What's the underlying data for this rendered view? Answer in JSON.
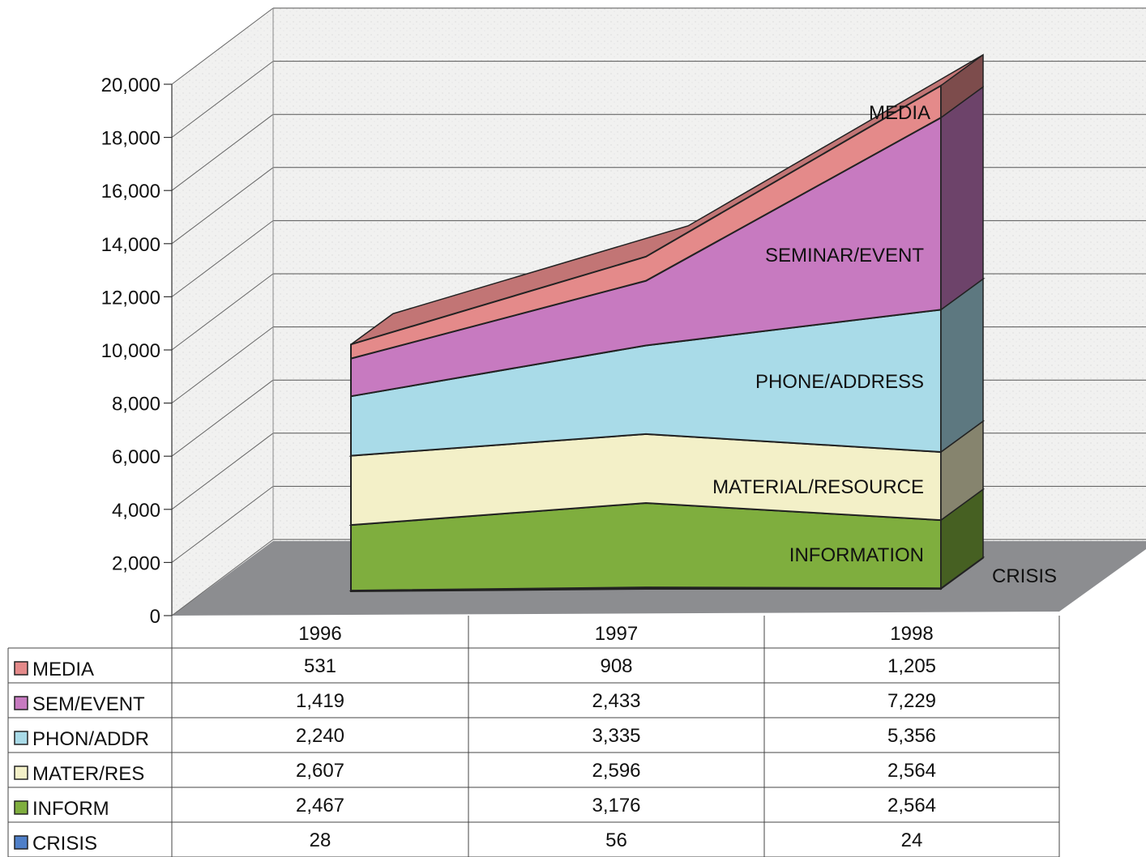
{
  "chart_data": {
    "type": "area",
    "subtype": "stacked-3d",
    "categories": [
      "1996",
      "1997",
      "1998"
    ],
    "ylim": [
      0,
      20000
    ],
    "y_ticks": [
      "0",
      "2,000",
      "4,000",
      "6,000",
      "8,000",
      "10,000",
      "12,000",
      "14,000",
      "16,000",
      "18,000",
      "20,000"
    ],
    "grid": true,
    "series": [
      {
        "name": "CRISIS",
        "table_label": "CRISIS",
        "values": [
          28,
          56,
          24
        ],
        "value_labels": [
          "28",
          "56",
          "24"
        ],
        "color": "#4f7fc8"
      },
      {
        "name": "INFORMATION",
        "table_label": "INFORM",
        "values": [
          2467,
          3176,
          2564
        ],
        "value_labels": [
          "2,467",
          "3,176",
          "2,564"
        ],
        "color": "#7fae3e"
      },
      {
        "name": "MATERIAL/RESOURCE",
        "table_label": "MATER/RES",
        "values": [
          2607,
          2596,
          2564
        ],
        "value_labels": [
          "2,607",
          "2,596",
          "2,564"
        ],
        "color": "#f3f0c8"
      },
      {
        "name": "PHONE/ADDRESS",
        "table_label": "PHON/ADDR",
        "values": [
          2240,
          3335,
          5356
        ],
        "value_labels": [
          "2,240",
          "3,335",
          "5,356"
        ],
        "color": "#a9dbe8"
      },
      {
        "name": "SEMINAR/EVENT",
        "table_label": "SEM/EVENT",
        "values": [
          1419,
          2433,
          7229
        ],
        "value_labels": [
          "1,419",
          "2,433",
          "7,229"
        ],
        "color": "#c77ac0"
      },
      {
        "name": "MEDIA",
        "table_label": "MEDIA",
        "values": [
          531,
          908,
          1205
        ],
        "value_labels": [
          "531",
          "908",
          "1,205"
        ],
        "color": "#e48a8a"
      }
    ],
    "table_order": [
      "MEDIA",
      "SEMINAR/EVENT",
      "PHONE/ADDRESS",
      "MATERIAL/RESOURCE",
      "INFORMATION",
      "CRISIS"
    ]
  }
}
